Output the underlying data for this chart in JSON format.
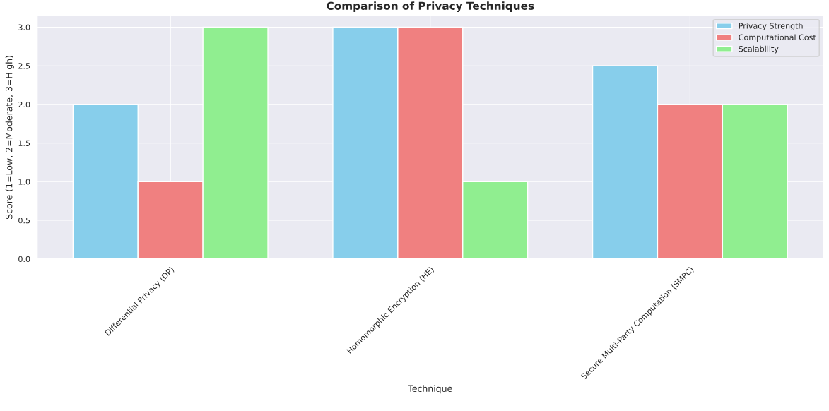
{
  "chart_data": {
    "type": "bar",
    "title": "Comparison of Privacy Techniques",
    "xlabel": "Technique",
    "ylabel": "Score (1=Low, 2=Moderate, 3=High)",
    "categories": [
      "Differential Privacy (DP)",
      "Homomorphic Encryption (HE)",
      "Secure Multi-Party Computation (SMPC)"
    ],
    "series": [
      {
        "name": "Privacy Strength",
        "color": "#87ceeb",
        "values": [
          2,
          3,
          2.5
        ]
      },
      {
        "name": "Computational Cost",
        "color": "#f08080",
        "values": [
          1,
          3,
          2
        ]
      },
      {
        "name": "Scalability",
        "color": "#90ee90",
        "values": [
          3,
          1,
          2
        ]
      }
    ],
    "ylim": [
      0,
      3.15
    ],
    "yticks": [
      {
        "value": 0,
        "label": "0.0"
      },
      0.5,
      {
        "value": 1,
        "label": "1.0"
      },
      1.5,
      {
        "value": 2,
        "label": "2.0"
      },
      2.5,
      {
        "value": 3,
        "label": "3.0"
      }
    ],
    "grid": true,
    "legend": "top right"
  }
}
